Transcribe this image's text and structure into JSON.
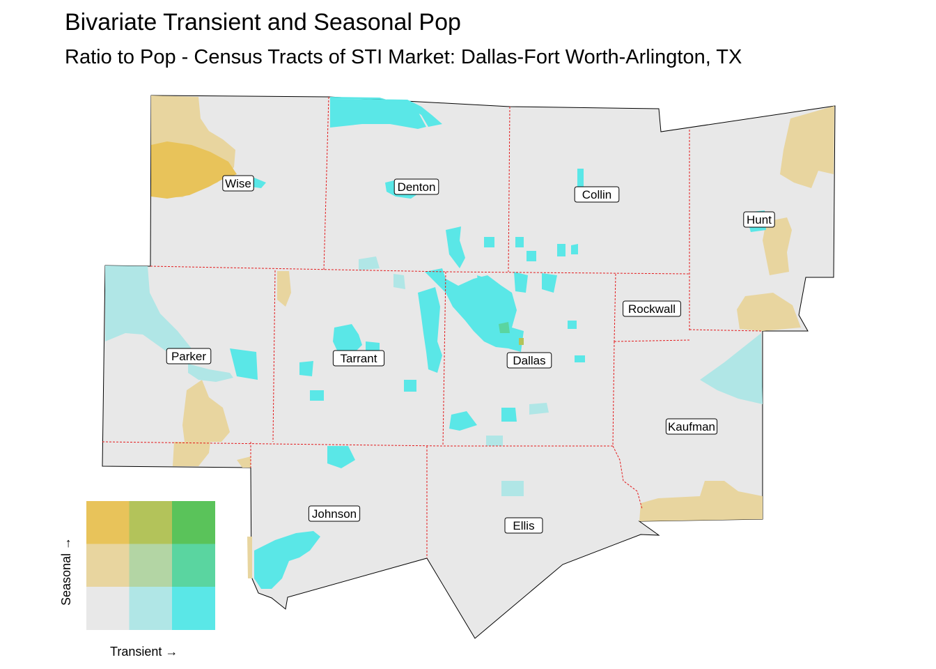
{
  "title": "Bivariate Transient and Seasonal Pop",
  "subtitle": "Ratio to Pop - Census Tracts of STI Market: Dallas-Fort Worth-Arlington, TX",
  "colors": {
    "background_tract": "#e8e8e8",
    "low_transient_mid": "#b0e6e6",
    "high_transient": "#5ae7e7",
    "mid_seasonal": "#e8d59f",
    "high_seasonal": "#e8c35a",
    "county_border": "#e31a1c"
  },
  "counties": [
    {
      "name": "Wise"
    },
    {
      "name": "Denton"
    },
    {
      "name": "Collin"
    },
    {
      "name": "Hunt"
    },
    {
      "name": "Rockwall"
    },
    {
      "name": "Parker"
    },
    {
      "name": "Tarrant"
    },
    {
      "name": "Dallas"
    },
    {
      "name": "Kaufman"
    },
    {
      "name": "Johnson"
    },
    {
      "name": "Ellis"
    }
  ],
  "legend": {
    "x_label": "Transient →",
    "y_label": "Seasonal →",
    "grid": [
      [
        "#e8c35a",
        "#b3c35a",
        "#5ac35a"
      ],
      [
        "#e8d59f",
        "#b3d5a4",
        "#5ad5a0"
      ],
      [
        "#e8e8e8",
        "#b0e6e6",
        "#5ae7e7"
      ]
    ]
  }
}
